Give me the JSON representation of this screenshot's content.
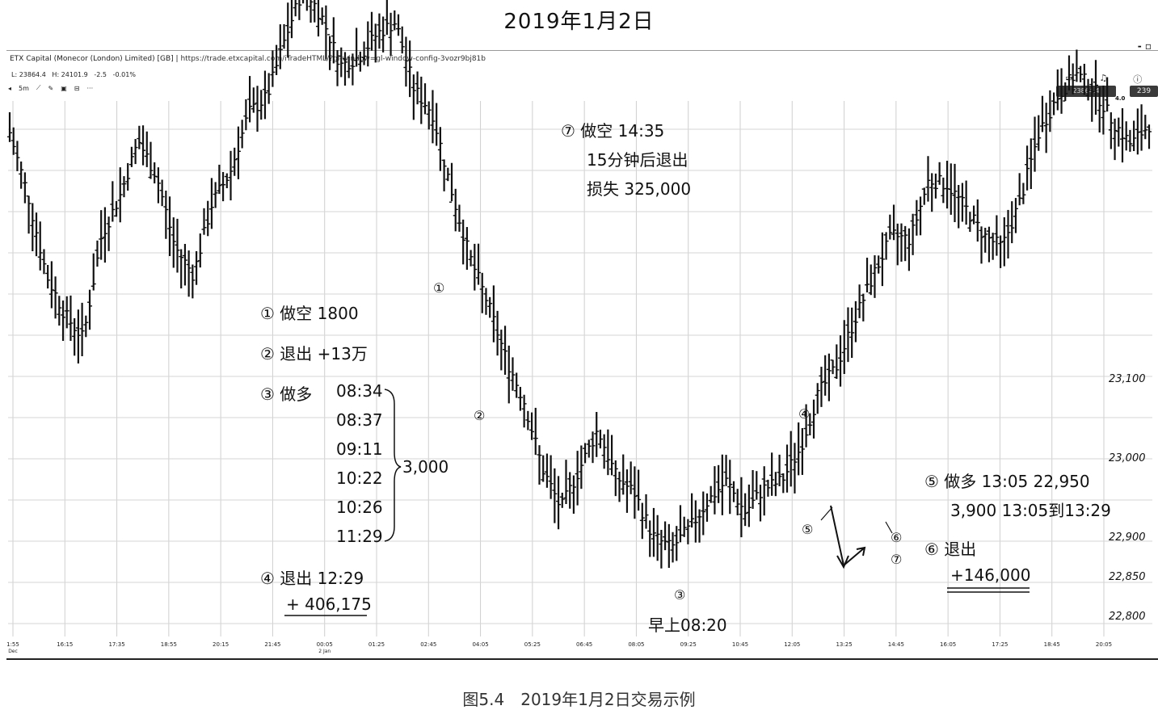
{
  "page_title": "2019年1月2日",
  "caption": "图5.4　2019年1月2日交易示例",
  "window": {
    "title": "ETX Capital (Monecor (London) Limited) [GB]",
    "url": "https://trade.etxcapital.com/iTradeHTML/?gl-window=gl-window-config-3vozr9bj81b",
    "controls": "- ▫"
  },
  "stats": {
    "low": "L: 23864.4",
    "high": "H: 24101.9",
    "change": "-2.5",
    "change_pct": "-0.01%"
  },
  "toolbar": {
    "interval": "5m",
    "more": "···"
  },
  "price_pill": "23864.4",
  "price_pill2": "239",
  "scale_small": "4.0",
  "annotations": {
    "a1": "① 做空 1800",
    "a2": "② 退出 +13万",
    "a3_label": "③ 做多",
    "a3_times": [
      "08:34",
      "08:37",
      "09:11",
      "10:22",
      "10:26",
      "11:29"
    ],
    "a3_qty": "3,000",
    "a4_line1": "④ 退出 12:29",
    "a4_line2": "+ 406,175",
    "a7_line1": "⑦ 做空 14:35",
    "a7_line2": "15分钟后退出",
    "a7_line3": "损失 325,000",
    "a5_line1": "⑤ 做多 13:05 22,950",
    "a5_line2": "3,900 13:05到13:29",
    "a6_line1": "⑥ 退出",
    "a6_line2": "+146,000",
    "morning": "早上08:20"
  },
  "markers": [
    "①",
    "②",
    "③",
    "④",
    "⑤",
    "⑥",
    "⑦"
  ],
  "chart_data": {
    "type": "bar",
    "subtype": "ohlc",
    "title": "",
    "xlabel": "",
    "ylabel": "",
    "grid": true,
    "x_ticks": [
      "1:55",
      "16:15",
      "17:35",
      "18:55",
      "20:15",
      "21:45",
      "00:05",
      "01:25",
      "02:45",
      "04:05",
      "05:25",
      "06:45",
      "08:05",
      "09:25",
      "10:45",
      "12:05",
      "13:25",
      "14:45",
      "16:05",
      "17:25",
      "18:45",
      "20:05"
    ],
    "x_tick_sublabels": {
      "1:55": "Dec",
      "00:05": "2 Jan"
    },
    "y_ticks": [
      23100,
      23000,
      22900,
      22850,
      22800
    ],
    "y_tick_labels": [
      "23,100",
      "23,000",
      "22,900",
      "22,850",
      "22,800"
    ],
    "series": [
      {
        "values": [
          23410,
          23330,
          23230,
          23180,
          23150,
          23280,
          23330,
          23400,
          23355,
          23265,
          23230,
          23320,
          23360,
          23435,
          23455,
          23530,
          23595,
          23555,
          23495,
          23505,
          23535,
          23550,
          23465,
          23435,
          23340,
          23255,
          23195,
          23125,
          23070,
          22985,
          22935,
          22985,
          23035,
          22975,
          22955,
          22900,
          22885,
          22910,
          22945,
          22970,
          22930,
          22960,
          22970,
          23010,
          23080,
          23115,
          23175,
          23230,
          23280,
          23275,
          23350,
          23345,
          23315,
          23280,
          23265,
          23325,
          23410,
          23455,
          23485,
          23465,
          23425,
          23395,
          23420
        ]
      }
    ]
  }
}
